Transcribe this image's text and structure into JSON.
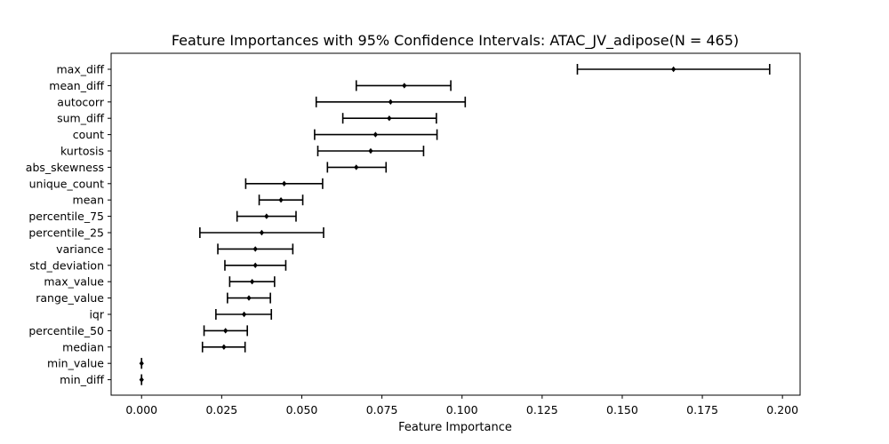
{
  "chart_data": {
    "type": "errorbar",
    "title": "Feature Importances with 95% Confidence Intervals: ATAC_JV_adipose(N = 465)",
    "xlabel": "Feature Importance",
    "ylabel": "",
    "xlim": [
      -0.0095,
      0.2055
    ],
    "xticks": [
      0.0,
      0.025,
      0.05,
      0.075,
      0.1,
      0.125,
      0.15,
      0.175,
      0.2
    ],
    "xtick_labels": [
      "0.000",
      "0.025",
      "0.050",
      "0.075",
      "0.100",
      "0.125",
      "0.150",
      "0.175",
      "0.200"
    ],
    "grid": false,
    "features": [
      {
        "name": "max_diff",
        "value": 0.166,
        "lower": 0.136,
        "upper": 0.196
      },
      {
        "name": "mean_diff",
        "value": 0.082,
        "lower": 0.067,
        "upper": 0.0965
      },
      {
        "name": "autocorr",
        "value": 0.0777,
        "lower": 0.0545,
        "upper": 0.101
      },
      {
        "name": "sum_diff",
        "value": 0.0773,
        "lower": 0.0628,
        "upper": 0.092
      },
      {
        "name": "count",
        "value": 0.073,
        "lower": 0.054,
        "upper": 0.0922
      },
      {
        "name": "kurtosis",
        "value": 0.0715,
        "lower": 0.055,
        "upper": 0.088
      },
      {
        "name": "abs_skewness",
        "value": 0.067,
        "lower": 0.058,
        "upper": 0.0763
      },
      {
        "name": "unique_count",
        "value": 0.0445,
        "lower": 0.0325,
        "upper": 0.0565
      },
      {
        "name": "mean",
        "value": 0.0435,
        "lower": 0.0367,
        "upper": 0.0503
      },
      {
        "name": "percentile_75",
        "value": 0.039,
        "lower": 0.0298,
        "upper": 0.0482
      },
      {
        "name": "percentile_25",
        "value": 0.0375,
        "lower": 0.0182,
        "upper": 0.0568
      },
      {
        "name": "variance",
        "value": 0.0355,
        "lower": 0.0238,
        "upper": 0.0472
      },
      {
        "name": "std_deviation",
        "value": 0.0355,
        "lower": 0.026,
        "upper": 0.045
      },
      {
        "name": "max_value",
        "value": 0.0345,
        "lower": 0.0275,
        "upper": 0.0415
      },
      {
        "name": "range_value",
        "value": 0.0335,
        "lower": 0.0268,
        "upper": 0.0402
      },
      {
        "name": "iqr",
        "value": 0.032,
        "lower": 0.0232,
        "upper": 0.0405
      },
      {
        "name": "percentile_50",
        "value": 0.0262,
        "lower": 0.0195,
        "upper": 0.033
      },
      {
        "name": "median",
        "value": 0.0257,
        "lower": 0.019,
        "upper": 0.0323
      },
      {
        "name": "min_value",
        "value": 0.0,
        "lower": 0.0,
        "upper": 0.0
      },
      {
        "name": "min_diff",
        "value": 0.0,
        "lower": 0.0,
        "upper": 0.0
      }
    ],
    "colors": {
      "bar": "#000000",
      "axes": "#000000"
    }
  }
}
